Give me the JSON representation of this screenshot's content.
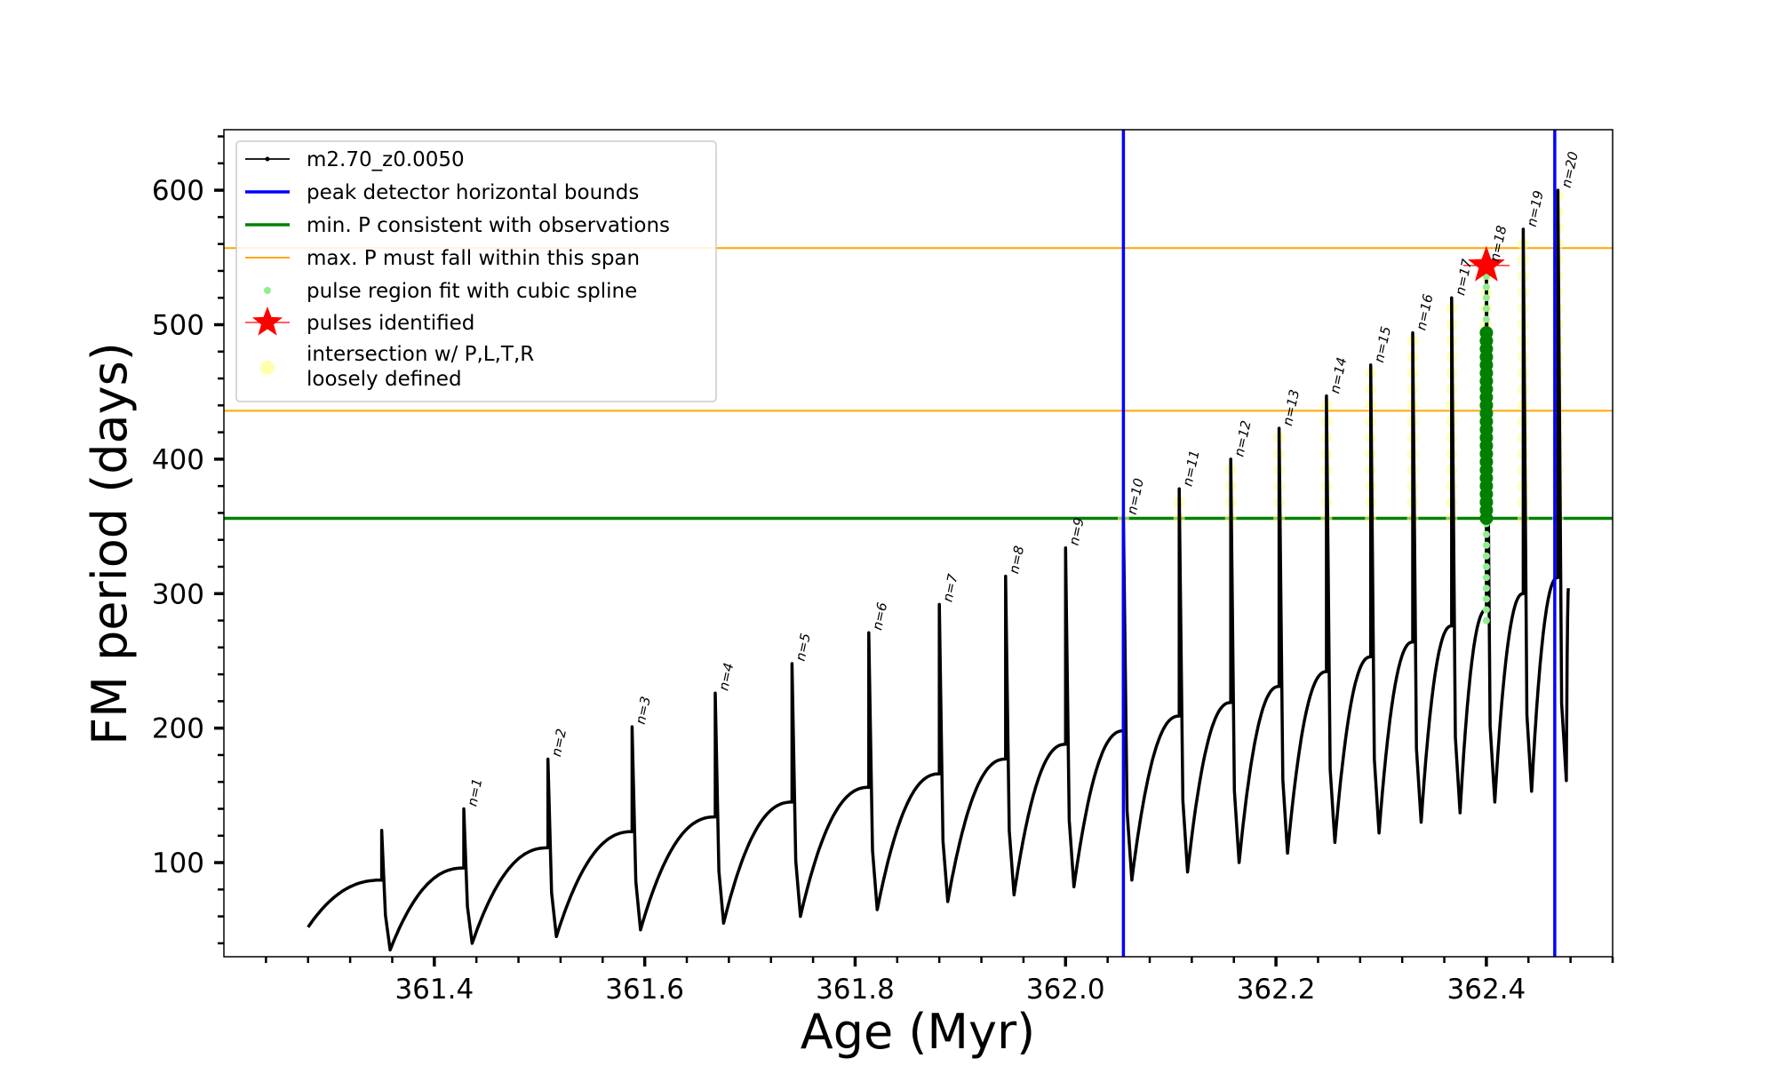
{
  "chart_data": {
    "type": "line",
    "xlabel": "Age (Myr)",
    "ylabel": "FM period (days)",
    "xlim": [
      361.2,
      362.52
    ],
    "ylim": [
      30,
      645
    ],
    "xticks": [
      361.4,
      361.6,
      361.8,
      362.0,
      362.2,
      362.4
    ],
    "xtick_labels": [
      "361.4",
      "361.6",
      "361.8",
      "362.0",
      "362.2",
      "362.4"
    ],
    "yticks": [
      100,
      200,
      300,
      400,
      500,
      600
    ],
    "ytick_labels": [
      "100",
      "200",
      "300",
      "400",
      "500",
      "600"
    ],
    "grid": false,
    "legend_position": "top-left",
    "colors": {
      "track": "#000000",
      "bounds": "#0000ff",
      "min_period": "#008000",
      "max_period_span": "#ffa500",
      "spline": "#90ee90",
      "spline_fit": "#008000",
      "pulse_star": "#ff0000",
      "loose_points": "#ffff99"
    },
    "legend": [
      {
        "label": "m2.70_z0.0050",
        "kind": "line-marker",
        "color": "#000000"
      },
      {
        "label": "peak detector horizontal bounds",
        "kind": "line",
        "color": "#0000ff"
      },
      {
        "label": "min. P consistent with observations",
        "kind": "line",
        "color": "#008000"
      },
      {
        "label": "max. P must fall within this span",
        "kind": "thin-line",
        "color": "#ffa500"
      },
      {
        "label": "pulse region fit with cubic spline",
        "kind": "dot",
        "color": "#90ee90"
      },
      {
        "label": "pulses identified",
        "kind": "star",
        "color": "#ff0000"
      },
      {
        "label": "intersection w/ P,L,T,R",
        "label2": "loosely defined",
        "kind": "circle",
        "color": "#ffff99"
      }
    ],
    "vertical_bounds": [
      362.055,
      362.465
    ],
    "min_period": 356,
    "max_period_span": [
      436,
      557
    ],
    "pulse_star": {
      "x": 362.4,
      "y": 544
    },
    "spline_column": {
      "x": 362.4,
      "ymin": 280,
      "ymax": 545
    },
    "spline_fit_column": {
      "x": 362.4,
      "ymin": 356,
      "ymax": 495
    },
    "start": {
      "x": 361.28,
      "y": 52
    },
    "pulses": [
      {
        "n": "",
        "x": 361.35,
        "peak": 124,
        "pre": 87,
        "min": 35
      },
      {
        "n": "n=1",
        "x": 361.428,
        "peak": 140,
        "pre": 96,
        "min": 40
      },
      {
        "n": "n=2",
        "x": 361.508,
        "peak": 177,
        "pre": 111,
        "min": 45
      },
      {
        "n": "n=3",
        "x": 361.588,
        "peak": 201,
        "pre": 123,
        "min": 50
      },
      {
        "n": "n=4",
        "x": 361.667,
        "peak": 226,
        "pre": 134,
        "min": 55
      },
      {
        "n": "n=5",
        "x": 361.74,
        "peak": 248,
        "pre": 145,
        "min": 60
      },
      {
        "n": "n=6",
        "x": 361.813,
        "peak": 271,
        "pre": 156,
        "min": 65
      },
      {
        "n": "n=7",
        "x": 361.88,
        "peak": 292,
        "pre": 166,
        "min": 71
      },
      {
        "n": "n=8",
        "x": 361.943,
        "peak": 313,
        "pre": 177,
        "min": 76
      },
      {
        "n": "n=9",
        "x": 362.0,
        "peak": 334,
        "pre": 188,
        "min": 82
      },
      {
        "n": "n=10",
        "x": 362.055,
        "peak": 357,
        "pre": 198,
        "min": 87
      },
      {
        "n": "n=11",
        "x": 362.108,
        "peak": 378,
        "pre": 209,
        "min": 93
      },
      {
        "n": "n=12",
        "x": 362.157,
        "peak": 400,
        "pre": 219,
        "min": 100
      },
      {
        "n": "n=13",
        "x": 362.203,
        "peak": 423,
        "pre": 231,
        "min": 107
      },
      {
        "n": "n=14",
        "x": 362.248,
        "peak": 447,
        "pre": 242,
        "min": 115
      },
      {
        "n": "n=15",
        "x": 362.29,
        "peak": 470,
        "pre": 253,
        "min": 122
      },
      {
        "n": "n=16",
        "x": 362.33,
        "peak": 494,
        "pre": 264,
        "min": 130
      },
      {
        "n": "n=17",
        "x": 362.367,
        "peak": 520,
        "pre": 276,
        "min": 137
      },
      {
        "n": "n=18",
        "x": 362.4,
        "peak": 545,
        "pre": 288,
        "min": 145
      },
      {
        "n": "n=19",
        "x": 362.435,
        "peak": 571,
        "pre": 300,
        "min": 153
      },
      {
        "n": "n=20",
        "x": 362.468,
        "peak": 600,
        "pre": 312,
        "min": 161
      }
    ],
    "end": {
      "x": 362.478,
      "y": 304
    }
  }
}
